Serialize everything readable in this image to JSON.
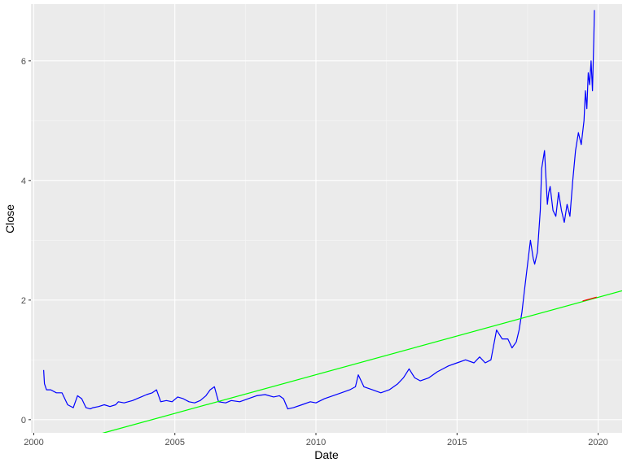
{
  "chart_data": {
    "type": "line",
    "xlabel": "Date",
    "ylabel": "Close",
    "xlim": [
      1999.9,
      2020.85
    ],
    "ylim": [
      -0.22,
      6.95
    ],
    "x_ticks": [
      {
        "value": 2000,
        "label": "2000"
      },
      {
        "value": 2005,
        "label": "2005"
      },
      {
        "value": 2010,
        "label": "2010"
      },
      {
        "value": 2015,
        "label": "2015"
      },
      {
        "value": 2020,
        "label": "2020"
      }
    ],
    "y_ticks": [
      {
        "value": 0,
        "label": "0"
      },
      {
        "value": 2,
        "label": "2"
      },
      {
        "value": 4,
        "label": "4"
      },
      {
        "value": 6,
        "label": "6"
      }
    ],
    "grid": true,
    "background": "#ebebeb",
    "series": [
      {
        "color": "#0000ff",
        "kind": "line",
        "x": [
          2000.35,
          2000.38,
          2000.45,
          2000.6,
          2000.8,
          2001.0,
          2001.2,
          2001.4,
          2001.55,
          2001.7,
          2001.85,
          2002.0,
          2002.1,
          2002.3,
          2002.5,
          2002.7,
          2002.9,
          2003.0,
          2003.2,
          2003.5,
          2003.8,
          2004.0,
          2004.2,
          2004.35,
          2004.5,
          2004.7,
          2004.9,
          2005.1,
          2005.3,
          2005.5,
          2005.7,
          2005.9,
          2006.1,
          2006.25,
          2006.4,
          2006.55,
          2006.8,
          2007.0,
          2007.3,
          2007.6,
          2007.9,
          2008.2,
          2008.5,
          2008.7,
          2008.85,
          2009.0,
          2009.2,
          2009.5,
          2009.8,
          2010.0,
          2010.3,
          2010.6,
          2010.9,
          2011.2,
          2011.4,
          2011.5,
          2011.7,
          2012.0,
          2012.3,
          2012.6,
          2012.9,
          2013.1,
          2013.3,
          2013.5,
          2013.7,
          2014.0,
          2014.3,
          2014.5,
          2014.7,
          2015.0,
          2015.3,
          2015.6,
          2015.8,
          2016.0,
          2016.2,
          2016.4,
          2016.6,
          2016.8,
          2016.95,
          2017.1,
          2017.2,
          2017.3,
          2017.4,
          2017.5,
          2017.6,
          2017.7,
          2017.75,
          2017.85,
          2017.95,
          2018.0,
          2018.1,
          2018.2,
          2018.25,
          2018.3,
          2018.4,
          2018.5,
          2018.6,
          2018.7,
          2018.8,
          2018.9,
          2019.0,
          2019.1,
          2019.2,
          2019.3,
          2019.4,
          2019.5,
          2019.55,
          2019.6,
          2019.65,
          2019.7,
          2019.75,
          2019.8,
          2019.85,
          2019.87
        ],
        "y": [
          0.83,
          0.6,
          0.5,
          0.5,
          0.45,
          0.45,
          0.25,
          0.2,
          0.4,
          0.35,
          0.2,
          0.18,
          0.2,
          0.22,
          0.25,
          0.22,
          0.25,
          0.3,
          0.28,
          0.32,
          0.38,
          0.42,
          0.45,
          0.5,
          0.3,
          0.32,
          0.3,
          0.38,
          0.35,
          0.3,
          0.28,
          0.32,
          0.4,
          0.5,
          0.55,
          0.3,
          0.28,
          0.32,
          0.3,
          0.35,
          0.4,
          0.42,
          0.38,
          0.4,
          0.35,
          0.18,
          0.2,
          0.25,
          0.3,
          0.28,
          0.35,
          0.4,
          0.45,
          0.5,
          0.55,
          0.75,
          0.55,
          0.5,
          0.45,
          0.5,
          0.6,
          0.7,
          0.85,
          0.7,
          0.65,
          0.7,
          0.8,
          0.85,
          0.9,
          0.95,
          1.0,
          0.95,
          1.05,
          0.95,
          1.0,
          1.5,
          1.35,
          1.35,
          1.2,
          1.3,
          1.5,
          1.8,
          2.2,
          2.6,
          3.0,
          2.7,
          2.6,
          2.8,
          3.5,
          4.2,
          4.5,
          3.6,
          3.8,
          3.9,
          3.5,
          3.4,
          3.8,
          3.5,
          3.3,
          3.6,
          3.4,
          4.0,
          4.5,
          4.8,
          4.6,
          5.0,
          5.5,
          5.2,
          5.8,
          5.6,
          6.0,
          5.5,
          6.4,
          6.85
        ]
      },
      {
        "color": "#00ff00",
        "kind": "line",
        "x": [
          1999.9,
          2020.85
        ],
        "y": [
          -0.555,
          2.155
        ]
      },
      {
        "color": "#ff0000",
        "kind": "line",
        "x": [
          2019.45,
          2019.95
        ],
        "y": [
          1.985,
          2.05
        ]
      }
    ]
  }
}
